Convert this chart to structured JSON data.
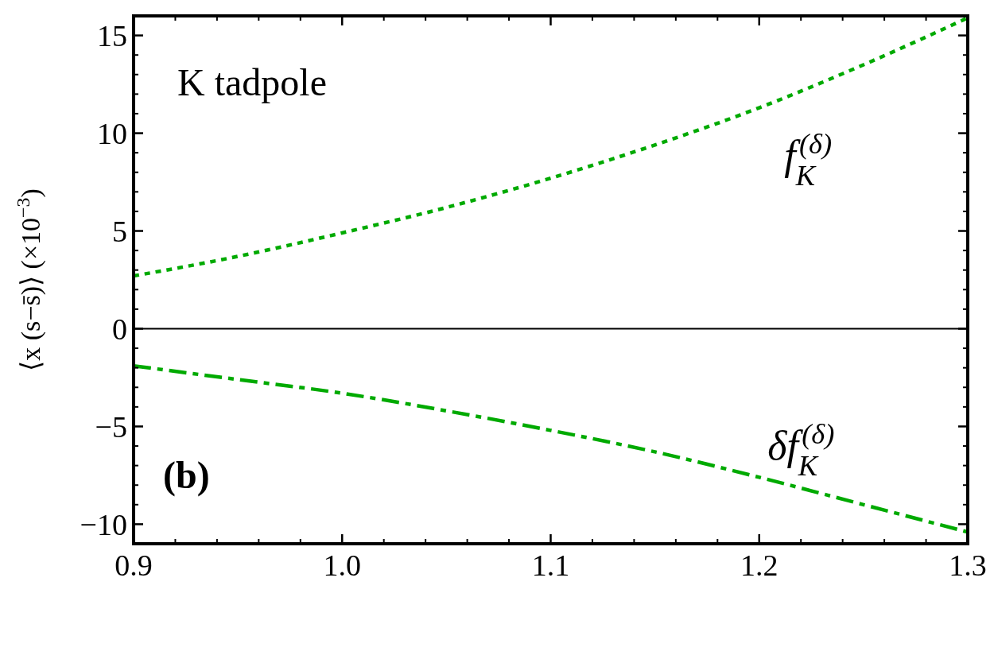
{
  "chart_data": {
    "type": "line",
    "ylabel": "⟨x (s−s̄)⟩    (×10$^{−3}$)",
    "x": [
      0.9,
      0.95,
      1.0,
      1.05,
      1.1,
      1.15,
      1.2,
      1.25,
      1.3
    ],
    "series": [
      {
        "name": "f$_{K}$$^{(δ)}$",
        "color": "#00aa00",
        "line_style": "dotted",
        "values": [
          2.7,
          3.7,
          4.9,
          6.2,
          7.7,
          9.4,
          11.3,
          13.5,
          15.9
        ]
      },
      {
        "name": "δf$_{K}$$^{(δ)}$",
        "color": "#00aa00",
        "line_style": "dashdot",
        "values": [
          -1.9,
          -2.6,
          -3.3,
          -4.2,
          -5.2,
          -6.3,
          -7.6,
          -9.0,
          -10.4
        ]
      }
    ],
    "annotations": [
      "K tadpole",
      "(b)"
    ],
    "ref_lines": [
      {
        "axis": "y",
        "value": 0,
        "color": "#000000"
      }
    ],
    "xlim": [
      0.9,
      1.3
    ],
    "xticks": [
      {
        "value": 0.9,
        "label": "0.9"
      },
      {
        "value": 1.0,
        "label": "1.0"
      },
      {
        "value": 1.1,
        "label": "1.1"
      },
      {
        "value": 1.2,
        "label": "1.2"
      },
      {
        "value": 1.3,
        "label": "1.3"
      }
    ],
    "ylim": [
      -11,
      16
    ],
    "yticks": [
      {
        "value": -10,
        "label": "−10"
      },
      {
        "value": -5,
        "label": "−5"
      },
      0,
      5,
      10,
      15
    ],
    "grid": false
  }
}
